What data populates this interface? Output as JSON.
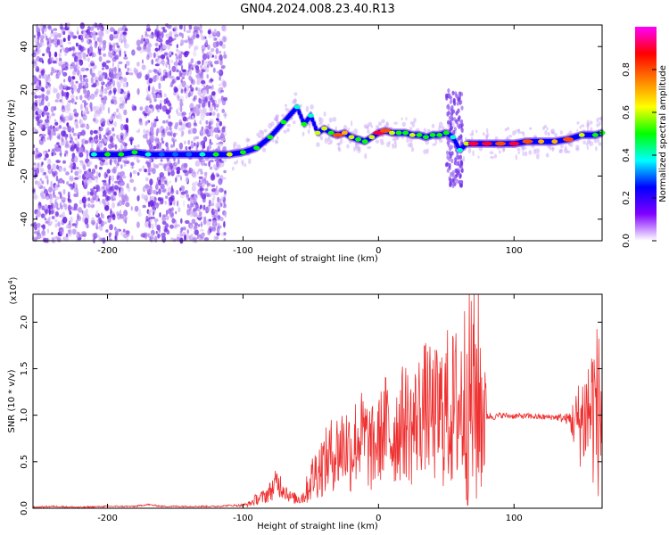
{
  "title": "GN04.2024.008.23.40.R13",
  "chart_data": [
    {
      "type": "heatmap",
      "xlabel": "Height of straight line (km)",
      "ylabel": "Frequency (Hz)",
      "xlim": [
        -255,
        165
      ],
      "ylim": [
        -50,
        50
      ],
      "x_ticks": [
        -200,
        -100,
        0,
        100
      ],
      "x_tick_labels": [
        "-200",
        "-100",
        "0",
        "100"
      ],
      "y_ticks": [
        40,
        20,
        0,
        -20,
        -40
      ],
      "y_tick_labels": [
        "40",
        "20",
        "0",
        "-20",
        "-40"
      ],
      "colorbar": {
        "label": "Normalized spectral amplitude",
        "range": [
          0.0,
          1.0
        ],
        "ticks": [
          0.0,
          0.2,
          0.4,
          0.6,
          0.8
        ],
        "tick_labels": [
          "0.0",
          "0.2",
          "0.4",
          "0.6",
          "0.8"
        ],
        "colors": [
          "#ffffff",
          "#8000ff",
          "#0000ff",
          "#00ffff",
          "#00ff00",
          "#ffff00",
          "#ff8000",
          "#ff0000",
          "#ff00ff"
        ]
      },
      "ridge": {
        "x": [
          -210,
          -200,
          -190,
          -180,
          -170,
          -160,
          -150,
          -140,
          -130,
          -120,
          -110,
          -100,
          -90,
          -80,
          -70,
          -60,
          -55,
          -50,
          -45,
          -40,
          -35,
          -30,
          -25,
          -20,
          -15,
          -10,
          -5,
          0,
          5,
          10,
          15,
          20,
          25,
          30,
          35,
          40,
          45,
          50,
          55,
          60,
          65,
          70,
          80,
          90,
          100,
          110,
          120,
          130,
          140,
          150,
          160,
          165
        ],
        "y": [
          -10,
          -10,
          -10,
          -9,
          -10,
          -10,
          -10,
          -10,
          -10,
          -10,
          -10,
          -9,
          -7,
          -2,
          5,
          12,
          4,
          8,
          0,
          2,
          0,
          -1,
          0,
          -2,
          -3,
          -4,
          -2,
          0,
          1,
          0,
          0,
          0,
          -1,
          -1,
          -2,
          -1,
          -1,
          0,
          -2,
          -8,
          -5,
          -5,
          -5,
          -5,
          -5,
          -4,
          -4,
          -4,
          -3,
          -1,
          -1,
          0
        ],
        "amplitude": [
          0.4,
          0.5,
          0.5,
          0.5,
          0.4,
          0.3,
          0.3,
          0.3,
          0.4,
          0.5,
          0.6,
          0.5,
          0.5,
          0.5,
          0.5,
          0.4,
          0.5,
          0.4,
          0.6,
          0.6,
          0.5,
          0.8,
          0.7,
          0.6,
          0.5,
          0.5,
          0.6,
          0.9,
          0.8,
          0.6,
          0.5,
          0.5,
          0.6,
          0.5,
          0.5,
          0.5,
          0.5,
          0.5,
          0.4,
          0.4,
          0.6,
          0.9,
          0.9,
          0.8,
          0.9,
          0.8,
          0.7,
          0.7,
          0.8,
          0.6,
          0.5,
          0.5
        ]
      }
    },
    {
      "type": "line",
      "xlabel": "Height of straight line (km)",
      "ylabel": "SNR (10 * v/v)",
      "y_multiplier": "(x10",
      "y_multiplier_exp": "4",
      "y_multiplier_close": ")",
      "xlim": [
        -255,
        165
      ],
      "ylim": [
        0,
        2.3
      ],
      "x_ticks": [
        -200,
        -100,
        0,
        100
      ],
      "x_tick_labels": [
        "-200",
        "-100",
        "0",
        "100"
      ],
      "y_ticks": [
        0.0,
        0.5,
        1.0,
        1.5,
        2.0
      ],
      "y_tick_labels": [
        "0.0",
        "0.5",
        "1.0",
        "1.5",
        "2.0"
      ],
      "series": [
        {
          "color": "#ee3030",
          "x": [
            -255,
            -240,
            -220,
            -200,
            -180,
            -170,
            -160,
            -140,
            -120,
            -110,
            -100,
            -95,
            -90,
            -85,
            -80,
            -75,
            -70,
            -65,
            -60,
            -55,
            -50,
            -45,
            -40,
            -35,
            -30,
            -25,
            -20,
            -15,
            -10,
            -5,
            0,
            5,
            10,
            15,
            20,
            25,
            30,
            35,
            40,
            45,
            50,
            55,
            60,
            65,
            70,
            75,
            78,
            80,
            85,
            90,
            100,
            110,
            120,
            130,
            140,
            145,
            150,
            155,
            160,
            165
          ],
          "y": [
            0.01,
            0.02,
            0.01,
            0.02,
            0.02,
            0.04,
            0.02,
            0.02,
            0.02,
            0.03,
            0.03,
            0.05,
            0.1,
            0.12,
            0.18,
            0.28,
            0.22,
            0.12,
            0.1,
            0.13,
            0.3,
            0.42,
            0.48,
            0.58,
            0.62,
            0.7,
            0.62,
            0.78,
            0.75,
            0.62,
            0.72,
            0.9,
            0.75,
            0.88,
            0.95,
            0.85,
            1.02,
            1.1,
            0.98,
            1.0,
            1.08,
            1.05,
            1.12,
            1.22,
            1.2,
            1.15,
            1.05,
            1.0,
            0.98,
            1.0,
            0.99,
            0.99,
            0.98,
            0.98,
            0.96,
            0.92,
            0.95,
            1.05,
            1.1,
            0.95
          ],
          "spread": [
            0.005,
            0.005,
            0.005,
            0.005,
            0.005,
            0.005,
            0.005,
            0.005,
            0.005,
            0.005,
            0.01,
            0.02,
            0.04,
            0.05,
            0.07,
            0.1,
            0.08,
            0.04,
            0.04,
            0.06,
            0.15,
            0.2,
            0.22,
            0.25,
            0.28,
            0.3,
            0.3,
            0.32,
            0.32,
            0.3,
            0.3,
            0.35,
            0.35,
            0.38,
            0.4,
            0.4,
            0.42,
            0.45,
            0.45,
            0.5,
            0.55,
            0.55,
            0.6,
            0.75,
            0.85,
            0.7,
            0.55,
            0.03,
            0.02,
            0.02,
            0.02,
            0.02,
            0.02,
            0.02,
            0.04,
            0.2,
            0.35,
            0.45,
            0.6,
            0.55
          ]
        }
      ]
    }
  ]
}
